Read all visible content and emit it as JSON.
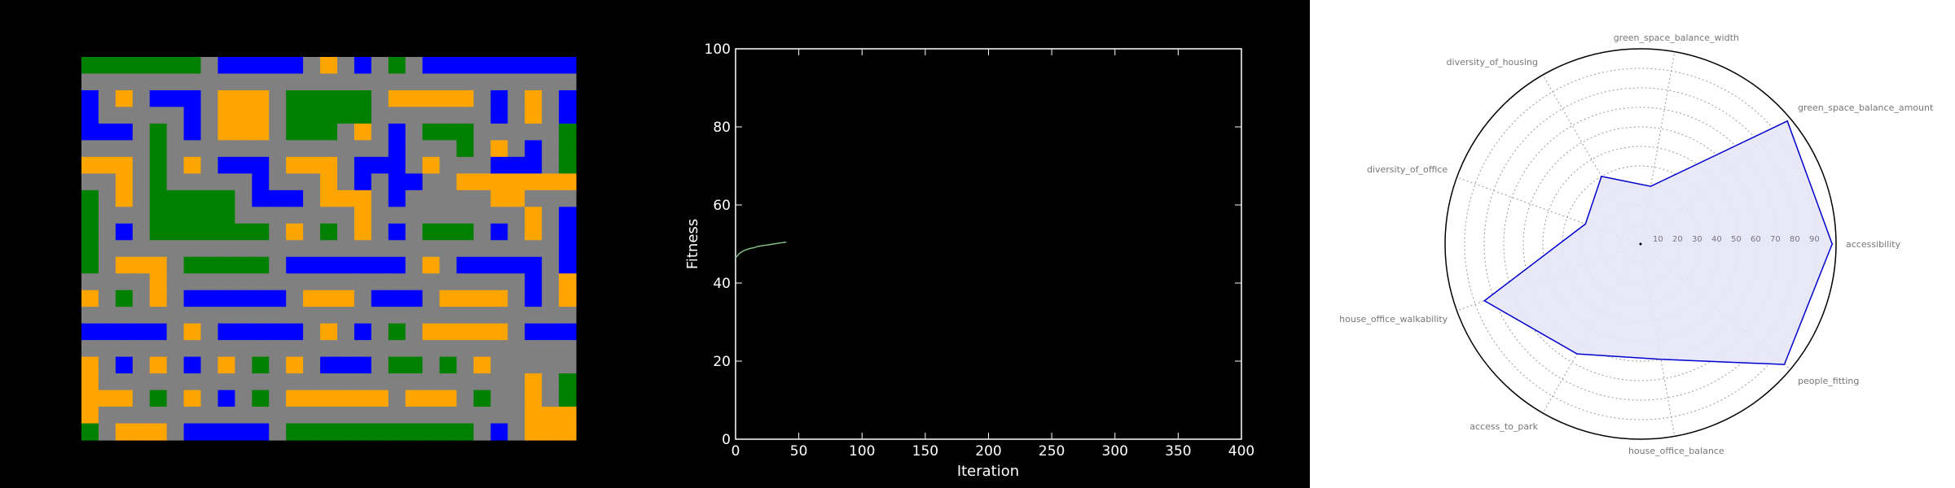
{
  "chart_data": [
    {
      "type": "heatmap",
      "colors": {
        "green": "#008000",
        "orange": "#ffa500",
        "blue": "#0000ff",
        "grey": "#808080"
      },
      "rows": 23,
      "cols": 29,
      "grid": [
        "GGGGGGGxBBBBBxOxBxGxBBBBBBBBB",
        "xxxxxxxxxxxxxxxxxxxxxxxxxxxxx",
        "BxOxBBBxOOOxGGGGGxOOOOOxBxOxB",
        "BxxxxxBxOOOxGGGGGxxxxxxxBxOxB",
        "BBBxGxBxOOOxGGGxOxBxGGGxxxxxG",
        "xxxxGxxxxxxxxxxxxxBxxxGxOxBxG",
        "OOOxGxOxBBBxOOOxBBBxOxxxBBBxG",
        "xxOxGxxxxxBxxxOxBxBBxxOOOOOOO",
        "GxOxGGGGGxBBBxOOOxBxxxxxOOxxx",
        "GxxxGGGGGxxxxxxxOxxxxxxxxxOxB",
        "GxBxGGGGGGGxOxGxOxBxGGGxBxOxB",
        "GxxxxxxxxxxxxxxxxxxxxxxxxxxxB",
        "GxOOOxGGGGGxBBBBBBBxOxBBBBBxB",
        "xxxxOxxxxxxxxxxxxxxxxxxxxxBxO",
        "OxGxOxBBBBBBxOOOxBBBxOOOOxBxO",
        "xxxxxxxxxxxxxxxxxxxxxxxxxxxxx",
        "BBBBBxOxBBBBBxOxBxGxOOOOOxBBB",
        "xxxxxxxxxxxxxxxxxxxxxxxxxxxxx",
        "OxBxOxBxOxGxOxBBBxGGxGxOxxxxx",
        "OxxxxxxxxxxxxxxxxxxxxxxxxxOxG",
        "OOOxGxOxBxGxOOOOOOxOOOxGxxOxG",
        "OxxxxxxxxxxxxxxxxxxxxxxxxxOOO",
        "GxOOOxBBBBBxGGGGGGGGGGGxBxOOO"
      ]
    },
    {
      "type": "line",
      "xlabel": "Iteration",
      "ylabel": "Fitness",
      "xlim": [
        0,
        400
      ],
      "ylim": [
        0,
        100
      ],
      "xticks": [
        0,
        50,
        100,
        150,
        200,
        250,
        300,
        350,
        400
      ],
      "yticks": [
        0,
        20,
        40,
        60,
        80,
        100
      ],
      "grid": false,
      "series": [
        {
          "color": "#7fbf7f",
          "x": [
            0,
            1,
            2,
            3,
            4,
            5,
            6,
            8,
            10,
            12,
            14,
            16,
            18,
            20,
            22,
            24,
            26,
            28,
            30,
            32,
            34,
            36,
            38,
            40
          ],
          "y": [
            46.5,
            46.8,
            47.2,
            47.6,
            47.8,
            48.0,
            48.2,
            48.5,
            48.7,
            48.9,
            49.0,
            49.2,
            49.4,
            49.5,
            49.6,
            49.7,
            49.8,
            49.9,
            50.0,
            50.1,
            50.2,
            50.3,
            50.4,
            50.5
          ]
        }
      ]
    },
    {
      "type": "radar",
      "ring_labels": [
        "10",
        "20",
        "30",
        "40",
        "50",
        "60",
        "70",
        "80",
        "90"
      ],
      "rmax": 100,
      "grid": true,
      "line_color": "#0000cd",
      "fill_color": "#e5e5f7",
      "axes": [
        "accessibility",
        "green_space_balance_amount",
        "green_space_balance_width",
        "diversity_of_housing",
        "diversity_of_office",
        "house_office_walkability",
        "access_to_park",
        "house_office_balance",
        "people_fitting"
      ],
      "values": [
        98,
        98,
        30,
        40,
        30,
        85,
        65,
        60,
        96
      ]
    }
  ]
}
